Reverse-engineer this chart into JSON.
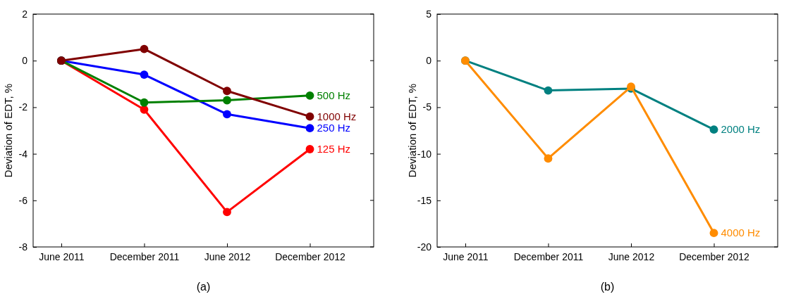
{
  "chart_data": [
    {
      "type": "line",
      "ylabel": "Deviation of EDT, %",
      "categories": [
        "June 2011",
        "December 2011",
        "June 2012",
        "December 2012"
      ],
      "ylim": [
        -8,
        2
      ],
      "yticks": [
        -8,
        -6,
        -4,
        -2,
        0,
        2
      ],
      "marker": "circle",
      "legend": false,
      "annotations": [
        "(a)"
      ],
      "series": [
        {
          "name": "125 Hz",
          "color": "#ff0000",
          "values": [
            0,
            -2.1,
            -6.5,
            -3.8
          ]
        },
        {
          "name": "250 Hz",
          "color": "#0000ff",
          "values": [
            0,
            -0.6,
            -2.3,
            -2.9
          ]
        },
        {
          "name": "500 Hz",
          "color": "#008000",
          "values": [
            0,
            -1.8,
            -1.7,
            -1.5
          ]
        },
        {
          "name": "1000 Hz",
          "color": "#800000",
          "values": [
            0,
            0.5,
            -1.3,
            -2.4
          ]
        }
      ]
    },
    {
      "type": "line",
      "ylabel": "Deviation of EDT, %",
      "categories": [
        "June 2011",
        "December 2011",
        "June 2012",
        "December 2012"
      ],
      "ylim": [
        -20,
        5
      ],
      "yticks": [
        -20,
        -15,
        -10,
        -5,
        0,
        5
      ],
      "marker": "circle",
      "legend": false,
      "annotations": [
        "(b)"
      ],
      "series": [
        {
          "name": "2000 Hz",
          "color": "#008080",
          "values": [
            0,
            -3.2,
            -3.0,
            -7.4
          ]
        },
        {
          "name": "4000 Hz",
          "color": "#ff8c00",
          "values": [
            0,
            -10.5,
            -2.8,
            -18.5
          ]
        }
      ]
    }
  ]
}
